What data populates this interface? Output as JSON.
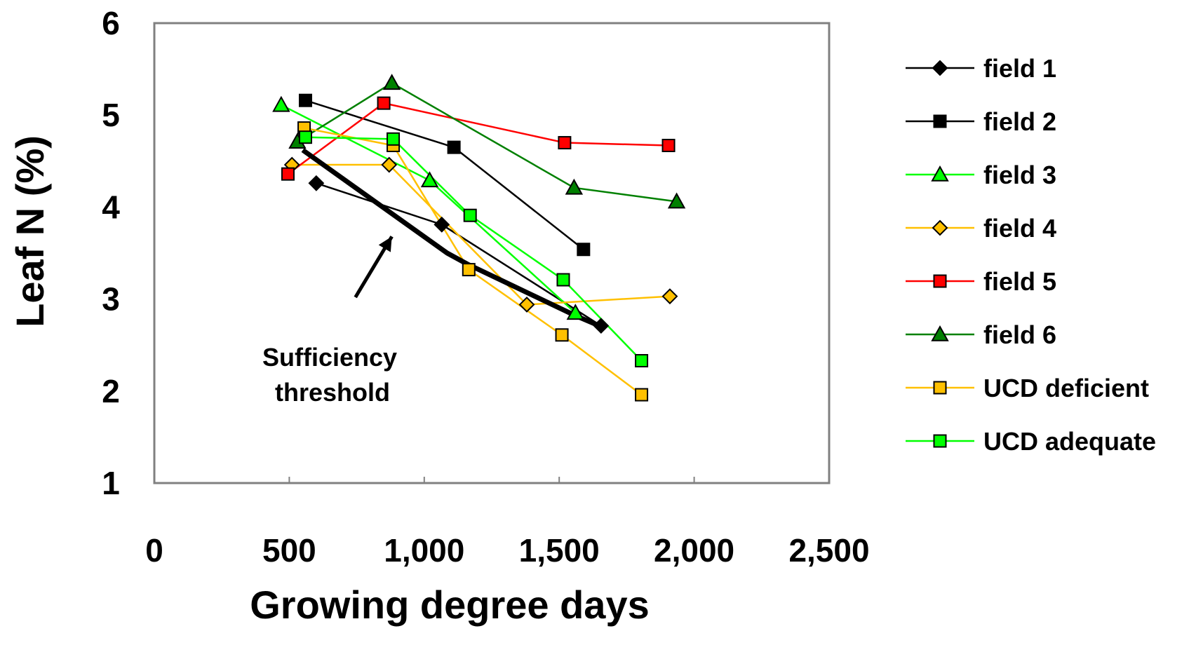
{
  "chart_data": {
    "type": "line",
    "title": "",
    "xlabel": "Growing degree days",
    "ylabel": "Leaf N (%)",
    "xlim": [
      0,
      2500
    ],
    "ylim": [
      1,
      6
    ],
    "xticks": [
      0,
      500,
      1000,
      1500,
      2000,
      2500
    ],
    "xtick_labels": [
      "0",
      "500",
      "1,000",
      "1,500",
      "2,000",
      "2,500"
    ],
    "yticks": [
      1,
      2,
      3,
      4,
      5,
      6
    ],
    "ytick_labels": [
      "1",
      "2",
      "3",
      "4",
      "5",
      "6"
    ],
    "grid": false,
    "legend_position": "right",
    "series": [
      {
        "name": "field 1",
        "color": "#000000",
        "marker": "diamond",
        "marker_fill": "#000000",
        "x": [
          600,
          1065,
          1655
        ],
        "y": [
          4.26,
          3.81,
          2.71
        ]
      },
      {
        "name": "field 2",
        "color": "#000000",
        "marker": "square",
        "marker_fill": "#000000",
        "x": [
          560,
          1110,
          1590
        ],
        "y": [
          5.16,
          4.65,
          3.54
        ]
      },
      {
        "name": "field 3",
        "color": "#00ff00",
        "marker": "triangle",
        "marker_fill": "#00ff00",
        "x": [
          470,
          1020,
          1560
        ],
        "y": [
          5.11,
          4.29,
          2.85
        ]
      },
      {
        "name": "field 4",
        "color": "#ffc000",
        "marker": "diamond",
        "marker_fill": "#ffc000",
        "x": [
          510,
          870,
          1380,
          1910
        ],
        "y": [
          4.46,
          4.46,
          2.94,
          3.03
        ]
      },
      {
        "name": "field 5",
        "color": "#ff0000",
        "marker": "square",
        "marker_fill": "#ff0000",
        "x": [
          495,
          850,
          1520,
          1905
        ],
        "y": [
          4.36,
          5.13,
          4.7,
          4.67
        ]
      },
      {
        "name": "field 6",
        "color": "#008000",
        "marker": "triangle",
        "marker_fill": "#008000",
        "x": [
          530,
          880,
          1555,
          1935
        ],
        "y": [
          4.71,
          5.35,
          4.21,
          4.06
        ]
      },
      {
        "name": "UCD deficient",
        "color": "#ffc000",
        "marker": "square",
        "marker_fill": "#ffc000",
        "x": [
          555,
          885,
          1165,
          1510,
          1805
        ],
        "y": [
          4.86,
          4.67,
          3.32,
          2.61,
          1.96
        ]
      },
      {
        "name": "UCD adequate",
        "color": "#00ff00",
        "marker": "square",
        "marker_fill": "#00ff00",
        "x": [
          560,
          885,
          1170,
          1515,
          1805
        ],
        "y": [
          4.76,
          4.74,
          3.91,
          3.21,
          2.33
        ]
      }
    ],
    "threshold": {
      "x": [
        550,
        1085,
        1160,
        1560,
        1640
      ],
      "y": [
        4.62,
        3.5,
        3.38,
        2.82,
        2.72
      ]
    },
    "annotation": {
      "text_lines": [
        "Sufficiency",
        "threshold"
      ],
      "arrow_from": [
        745,
        3.02
      ],
      "arrow_to": [
        880,
        3.68
      ]
    }
  }
}
